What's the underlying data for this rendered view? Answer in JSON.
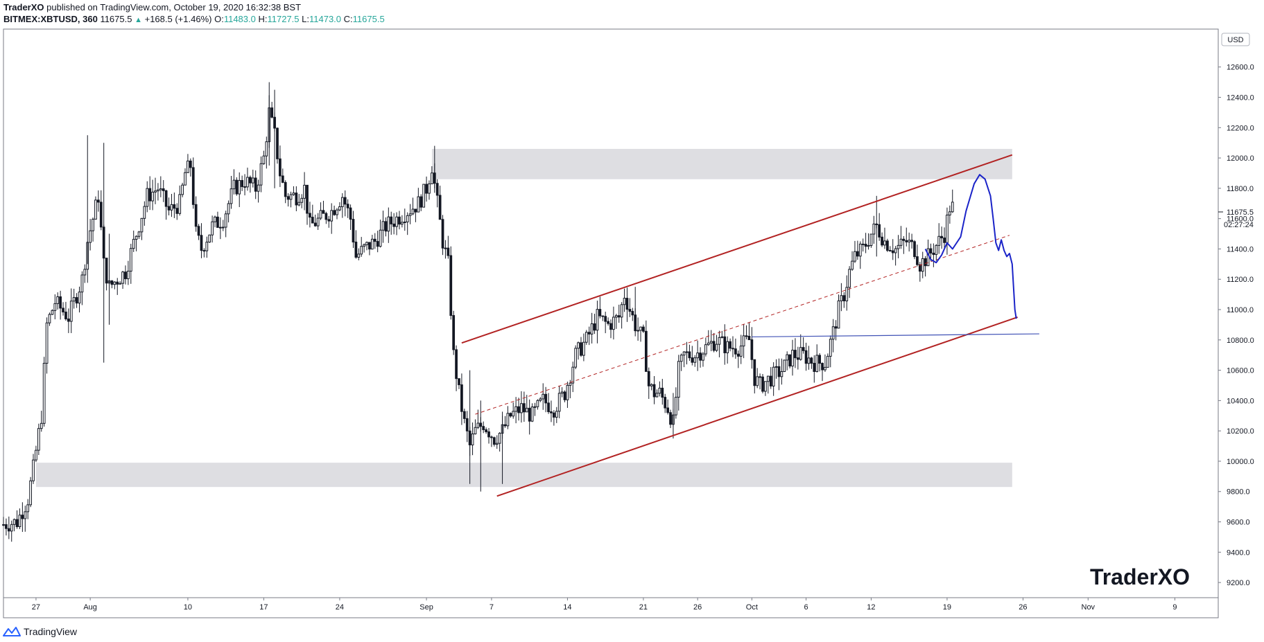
{
  "header": {
    "publisher": "TraderXO",
    "published_text": "published on TradingView.com, October 19, 2020 16:32:38 BST",
    "symbol": "BITMEX:XBTUSD, 360",
    "last": "11675.5",
    "change": "+168.5 (+1.46%)",
    "o_label": "O:",
    "o_value": "11483.0",
    "h_label": "H:",
    "h_value": "11727.5",
    "l_label": "L:",
    "l_value": "11473.0",
    "c_label": "C:",
    "c_value": "11675.5"
  },
  "footer": {
    "brand": "TradingView",
    "brand_icon": "tradingview-logo-icon"
  },
  "watermark": "TraderXO",
  "currency_badge": "USD",
  "price_badge": "11675.5",
  "countdown_badge": "02:27:24",
  "colors": {
    "channel": "#b22222",
    "midline": "#b22222",
    "support": "#3f51b5",
    "projection": "#1a23c8",
    "zone": "#dedee2",
    "candle": "#131722"
  },
  "chart_data": {
    "type": "candlestick",
    "y_axis": {
      "min": 9100,
      "max": 12850,
      "ticks": [
        9200,
        9400,
        9600,
        9800,
        10000,
        10200,
        10400,
        10600,
        10800,
        11000,
        11200,
        11400,
        11600,
        11800,
        12000,
        12200,
        12400,
        12600
      ],
      "tick_labels": [
        "9200.0",
        "9400.0",
        "9600.0",
        "9800.0",
        "10000.0",
        "10200.0",
        "10400.0",
        "10600.0",
        "10800.0",
        "11000.0",
        "11200.0",
        "11400.0",
        "11600.0",
        "11800.0",
        "12000.0",
        "12200.0",
        "12400.0",
        "12600.0"
      ]
    },
    "x_axis": {
      "start": "2020-07-24T00:00",
      "end": "2020-11-13T00:00",
      "ticks": [
        {
          "date": "2020-07-27",
          "label": "27"
        },
        {
          "date": "2020-08-01",
          "label": "Aug"
        },
        {
          "date": "2020-08-10",
          "label": "10"
        },
        {
          "date": "2020-08-17",
          "label": "17"
        },
        {
          "date": "2020-08-24",
          "label": "24"
        },
        {
          "date": "2020-09-01",
          "label": "Sep"
        },
        {
          "date": "2020-09-07",
          "label": "7"
        },
        {
          "date": "2020-09-14",
          "label": "14"
        },
        {
          "date": "2020-09-21",
          "label": "21"
        },
        {
          "date": "2020-09-26",
          "label": "26"
        },
        {
          "date": "2020-10-01",
          "label": "Oct"
        },
        {
          "date": "2020-10-06",
          "label": "6"
        },
        {
          "date": "2020-10-12",
          "label": "12"
        },
        {
          "date": "2020-10-19",
          "label": "19"
        },
        {
          "date": "2020-10-26",
          "label": "26"
        },
        {
          "date": "2020-11-01",
          "label": "Nov"
        },
        {
          "date": "2020-11-09",
          "label": "9"
        }
      ]
    },
    "price_path": [
      [
        "2020-07-24T00:00",
        9580
      ],
      [
        "2020-07-25T12:00",
        9600
      ],
      [
        "2020-07-26T12:00",
        9750
      ],
      [
        "2020-07-27T00:00",
        9950
      ],
      [
        "2020-07-27T18:00",
        10300
      ],
      [
        "2020-07-28T06:00",
        10900
      ],
      [
        "2020-07-29T00:00",
        11050
      ],
      [
        "2020-07-30T06:00",
        10950
      ],
      [
        "2020-07-31T12:00",
        11200
      ],
      [
        "2020-08-01T00:00",
        11450
      ],
      [
        "2020-08-02T00:00",
        11750
      ],
      [
        "2020-08-02T12:00",
        11300
      ],
      [
        "2020-08-03T00:00",
        11150
      ],
      [
        "2020-08-04T12:00",
        11250
      ],
      [
        "2020-08-05T12:00",
        11500
      ],
      [
        "2020-08-06T12:00",
        11750
      ],
      [
        "2020-08-07T12:00",
        11800
      ],
      [
        "2020-08-08T12:00",
        11650
      ],
      [
        "2020-08-09T12:00",
        11700
      ],
      [
        "2020-08-10T00:00",
        11900
      ],
      [
        "2020-08-10T12:00",
        11950
      ],
      [
        "2020-08-11T00:00",
        11500
      ],
      [
        "2020-08-11T12:00",
        11400
      ],
      [
        "2020-08-12T12:00",
        11550
      ],
      [
        "2020-08-13T12:00",
        11600
      ],
      [
        "2020-08-14T12:00",
        11800
      ],
      [
        "2020-08-15T12:00",
        11850
      ],
      [
        "2020-08-16T12:00",
        11800
      ],
      [
        "2020-08-17T06:00",
        12000
      ],
      [
        "2020-08-17T18:00",
        12300
      ],
      [
        "2020-08-18T06:00",
        12150
      ],
      [
        "2020-08-18T18:00",
        11900
      ],
      [
        "2020-08-19T06:00",
        11750
      ],
      [
        "2020-08-20T06:00",
        11750
      ],
      [
        "2020-08-21T00:00",
        11800
      ],
      [
        "2020-08-21T12:00",
        11550
      ],
      [
        "2020-08-22T12:00",
        11600
      ],
      [
        "2020-08-23T12:00",
        11650
      ],
      [
        "2020-08-24T12:00",
        11750
      ],
      [
        "2020-08-25T06:00",
        11600
      ],
      [
        "2020-08-25T18:00",
        11350
      ],
      [
        "2020-08-26T12:00",
        11400
      ],
      [
        "2020-08-27T12:00",
        11450
      ],
      [
        "2020-08-28T12:00",
        11550
      ],
      [
        "2020-08-29T12:00",
        11600
      ],
      [
        "2020-08-30T12:00",
        11650
      ],
      [
        "2020-08-31T12:00",
        11700
      ],
      [
        "2020-09-01T06:00",
        11800
      ],
      [
        "2020-09-01T18:00",
        11950
      ],
      [
        "2020-09-02T06:00",
        11700
      ],
      [
        "2020-09-02T18:00",
        11450
      ],
      [
        "2020-09-03T06:00",
        11300
      ],
      [
        "2020-09-03T18:00",
        10700
      ],
      [
        "2020-09-04T06:00",
        10450
      ],
      [
        "2020-09-04T18:00",
        10250
      ],
      [
        "2020-09-05T06:00",
        10100
      ],
      [
        "2020-09-05T18:00",
        10200
      ],
      [
        "2020-09-06T12:00",
        10250
      ],
      [
        "2020-09-07T12:00",
        10150
      ],
      [
        "2020-09-08T06:00",
        10200
      ],
      [
        "2020-09-09T00:00",
        10300
      ],
      [
        "2020-09-10T00:00",
        10350
      ],
      [
        "2020-09-11T00:00",
        10300
      ],
      [
        "2020-09-12T00:00",
        10400
      ],
      [
        "2020-09-13T00:00",
        10350
      ],
      [
        "2020-09-14T00:00",
        10450
      ],
      [
        "2020-09-15T00:00",
        10700
      ],
      [
        "2020-09-16T00:00",
        10800
      ],
      [
        "2020-09-17T00:00",
        10950
      ],
      [
        "2020-09-18T00:00",
        10900
      ],
      [
        "2020-09-19T00:00",
        10950
      ],
      [
        "2020-09-19T12:00",
        11100
      ],
      [
        "2020-09-20T12:00",
        10900
      ],
      [
        "2020-09-21T06:00",
        10800
      ],
      [
        "2020-09-21T18:00",
        10500
      ],
      [
        "2020-09-22T06:00",
        10450
      ],
      [
        "2020-09-22T18:00",
        10450
      ],
      [
        "2020-09-23T12:00",
        10350
      ],
      [
        "2020-09-24T00:00",
        10250
      ],
      [
        "2020-09-24T12:00",
        10600
      ],
      [
        "2020-09-25T00:00",
        10700
      ],
      [
        "2020-09-26T00:00",
        10700
      ],
      [
        "2020-09-27T00:00",
        10750
      ],
      [
        "2020-09-28T00:00",
        10800
      ],
      [
        "2020-09-29T00:00",
        10750
      ],
      [
        "2020-09-30T00:00",
        10750
      ],
      [
        "2020-10-01T00:00",
        10800
      ],
      [
        "2020-10-01T12:00",
        10550
      ],
      [
        "2020-10-02T00:00",
        10500
      ],
      [
        "2020-10-03T00:00",
        10550
      ],
      [
        "2020-10-04T00:00",
        10600
      ],
      [
        "2020-10-05T00:00",
        10700
      ],
      [
        "2020-10-06T00:00",
        10700
      ],
      [
        "2020-10-07T00:00",
        10650
      ],
      [
        "2020-10-08T00:00",
        10650
      ],
      [
        "2020-10-08T18:00",
        10850
      ],
      [
        "2020-10-09T06:00",
        11000
      ],
      [
        "2020-10-09T18:00",
        11100
      ],
      [
        "2020-10-10T06:00",
        11250
      ],
      [
        "2020-10-10T18:00",
        11350
      ],
      [
        "2020-10-11T12:00",
        11400
      ],
      [
        "2020-10-12T06:00",
        11500
      ],
      [
        "2020-10-12T18:00",
        11550
      ],
      [
        "2020-10-13T12:00",
        11450
      ],
      [
        "2020-10-14T12:00",
        11400
      ],
      [
        "2020-10-15T12:00",
        11450
      ],
      [
        "2020-10-16T06:00",
        11400
      ],
      [
        "2020-10-16T18:00",
        11300
      ],
      [
        "2020-10-17T12:00",
        11350
      ],
      [
        "2020-10-18T12:00",
        11450
      ],
      [
        "2020-10-19T00:00",
        11500
      ],
      [
        "2020-10-19T12:00",
        11675.5
      ]
    ],
    "spikes": [
      [
        "2020-07-31T18:00",
        12150,
        11300
      ],
      [
        "2020-08-02T06:00",
        12100,
        10650
      ],
      [
        "2020-08-02T18:00",
        11500,
        10900
      ],
      [
        "2020-08-17T12:00",
        12500,
        11950
      ],
      [
        "2020-08-18T00:00",
        12450,
        11800
      ],
      [
        "2020-09-01T18:00",
        12080,
        11800
      ],
      [
        "2020-09-05T00:00",
        10600,
        9850
      ],
      [
        "2020-09-06T00:00",
        10400,
        9800
      ],
      [
        "2020-09-08T00:00",
        10300,
        9850
      ],
      [
        "2020-09-20T06:00",
        11150,
        10850
      ],
      [
        "2020-09-23T18:00",
        10450,
        10150
      ],
      [
        "2020-10-12T12:00",
        11750,
        11350
      ]
    ],
    "annotations": {
      "zones": [
        {
          "name": "resistance-zone",
          "x_start": "2020-09-01T12:00",
          "x_end": "2020-10-25T00:00",
          "y_low": 11860,
          "y_high": 12060
        },
        {
          "name": "support-zone",
          "x_start": "2020-07-27T00:00",
          "x_end": "2020-10-25T00:00",
          "y_low": 9830,
          "y_high": 9990
        }
      ],
      "channel_upper": [
        [
          "2020-09-04T06:00",
          10780
        ],
        [
          "2020-10-25T00:00",
          12020
        ]
      ],
      "channel_lower": [
        [
          "2020-09-07T12:00",
          9770
        ],
        [
          "2020-10-25T12:00",
          10950
        ]
      ],
      "channel_mid": [
        [
          "2020-09-05T12:00",
          10310
        ],
        [
          "2020-10-24T18:00",
          11490
        ]
      ],
      "support_line": [
        [
          "2020-10-01T00:00",
          10820
        ],
        [
          "2020-10-27T12:00",
          10840
        ]
      ],
      "projection": [
        [
          "2020-10-17T00:00",
          11400
        ],
        [
          "2020-10-17T12:00",
          11330
        ],
        [
          "2020-10-18T00:00",
          11310
        ],
        [
          "2020-10-18T12:00",
          11360
        ],
        [
          "2020-10-19T00:00",
          11440
        ],
        [
          "2020-10-19T12:00",
          11400
        ],
        [
          "2020-10-20T06:00",
          11480
        ],
        [
          "2020-10-20T18:00",
          11650
        ],
        [
          "2020-10-21T12:00",
          11830
        ],
        [
          "2020-10-22T00:00",
          11890
        ],
        [
          "2020-10-22T12:00",
          11860
        ],
        [
          "2020-10-23T00:00",
          11750
        ],
        [
          "2020-10-23T06:00",
          11600
        ],
        [
          "2020-10-23T12:00",
          11440
        ],
        [
          "2020-10-23T18:00",
          11390
        ],
        [
          "2020-10-24T00:00",
          11460
        ],
        [
          "2020-10-24T06:00",
          11390
        ],
        [
          "2020-10-24T12:00",
          11350
        ],
        [
          "2020-10-24T18:00",
          11370
        ],
        [
          "2020-10-25T00:00",
          11300
        ],
        [
          "2020-10-25T06:00",
          11000
        ],
        [
          "2020-10-25T09:00",
          10940
        ]
      ]
    }
  }
}
